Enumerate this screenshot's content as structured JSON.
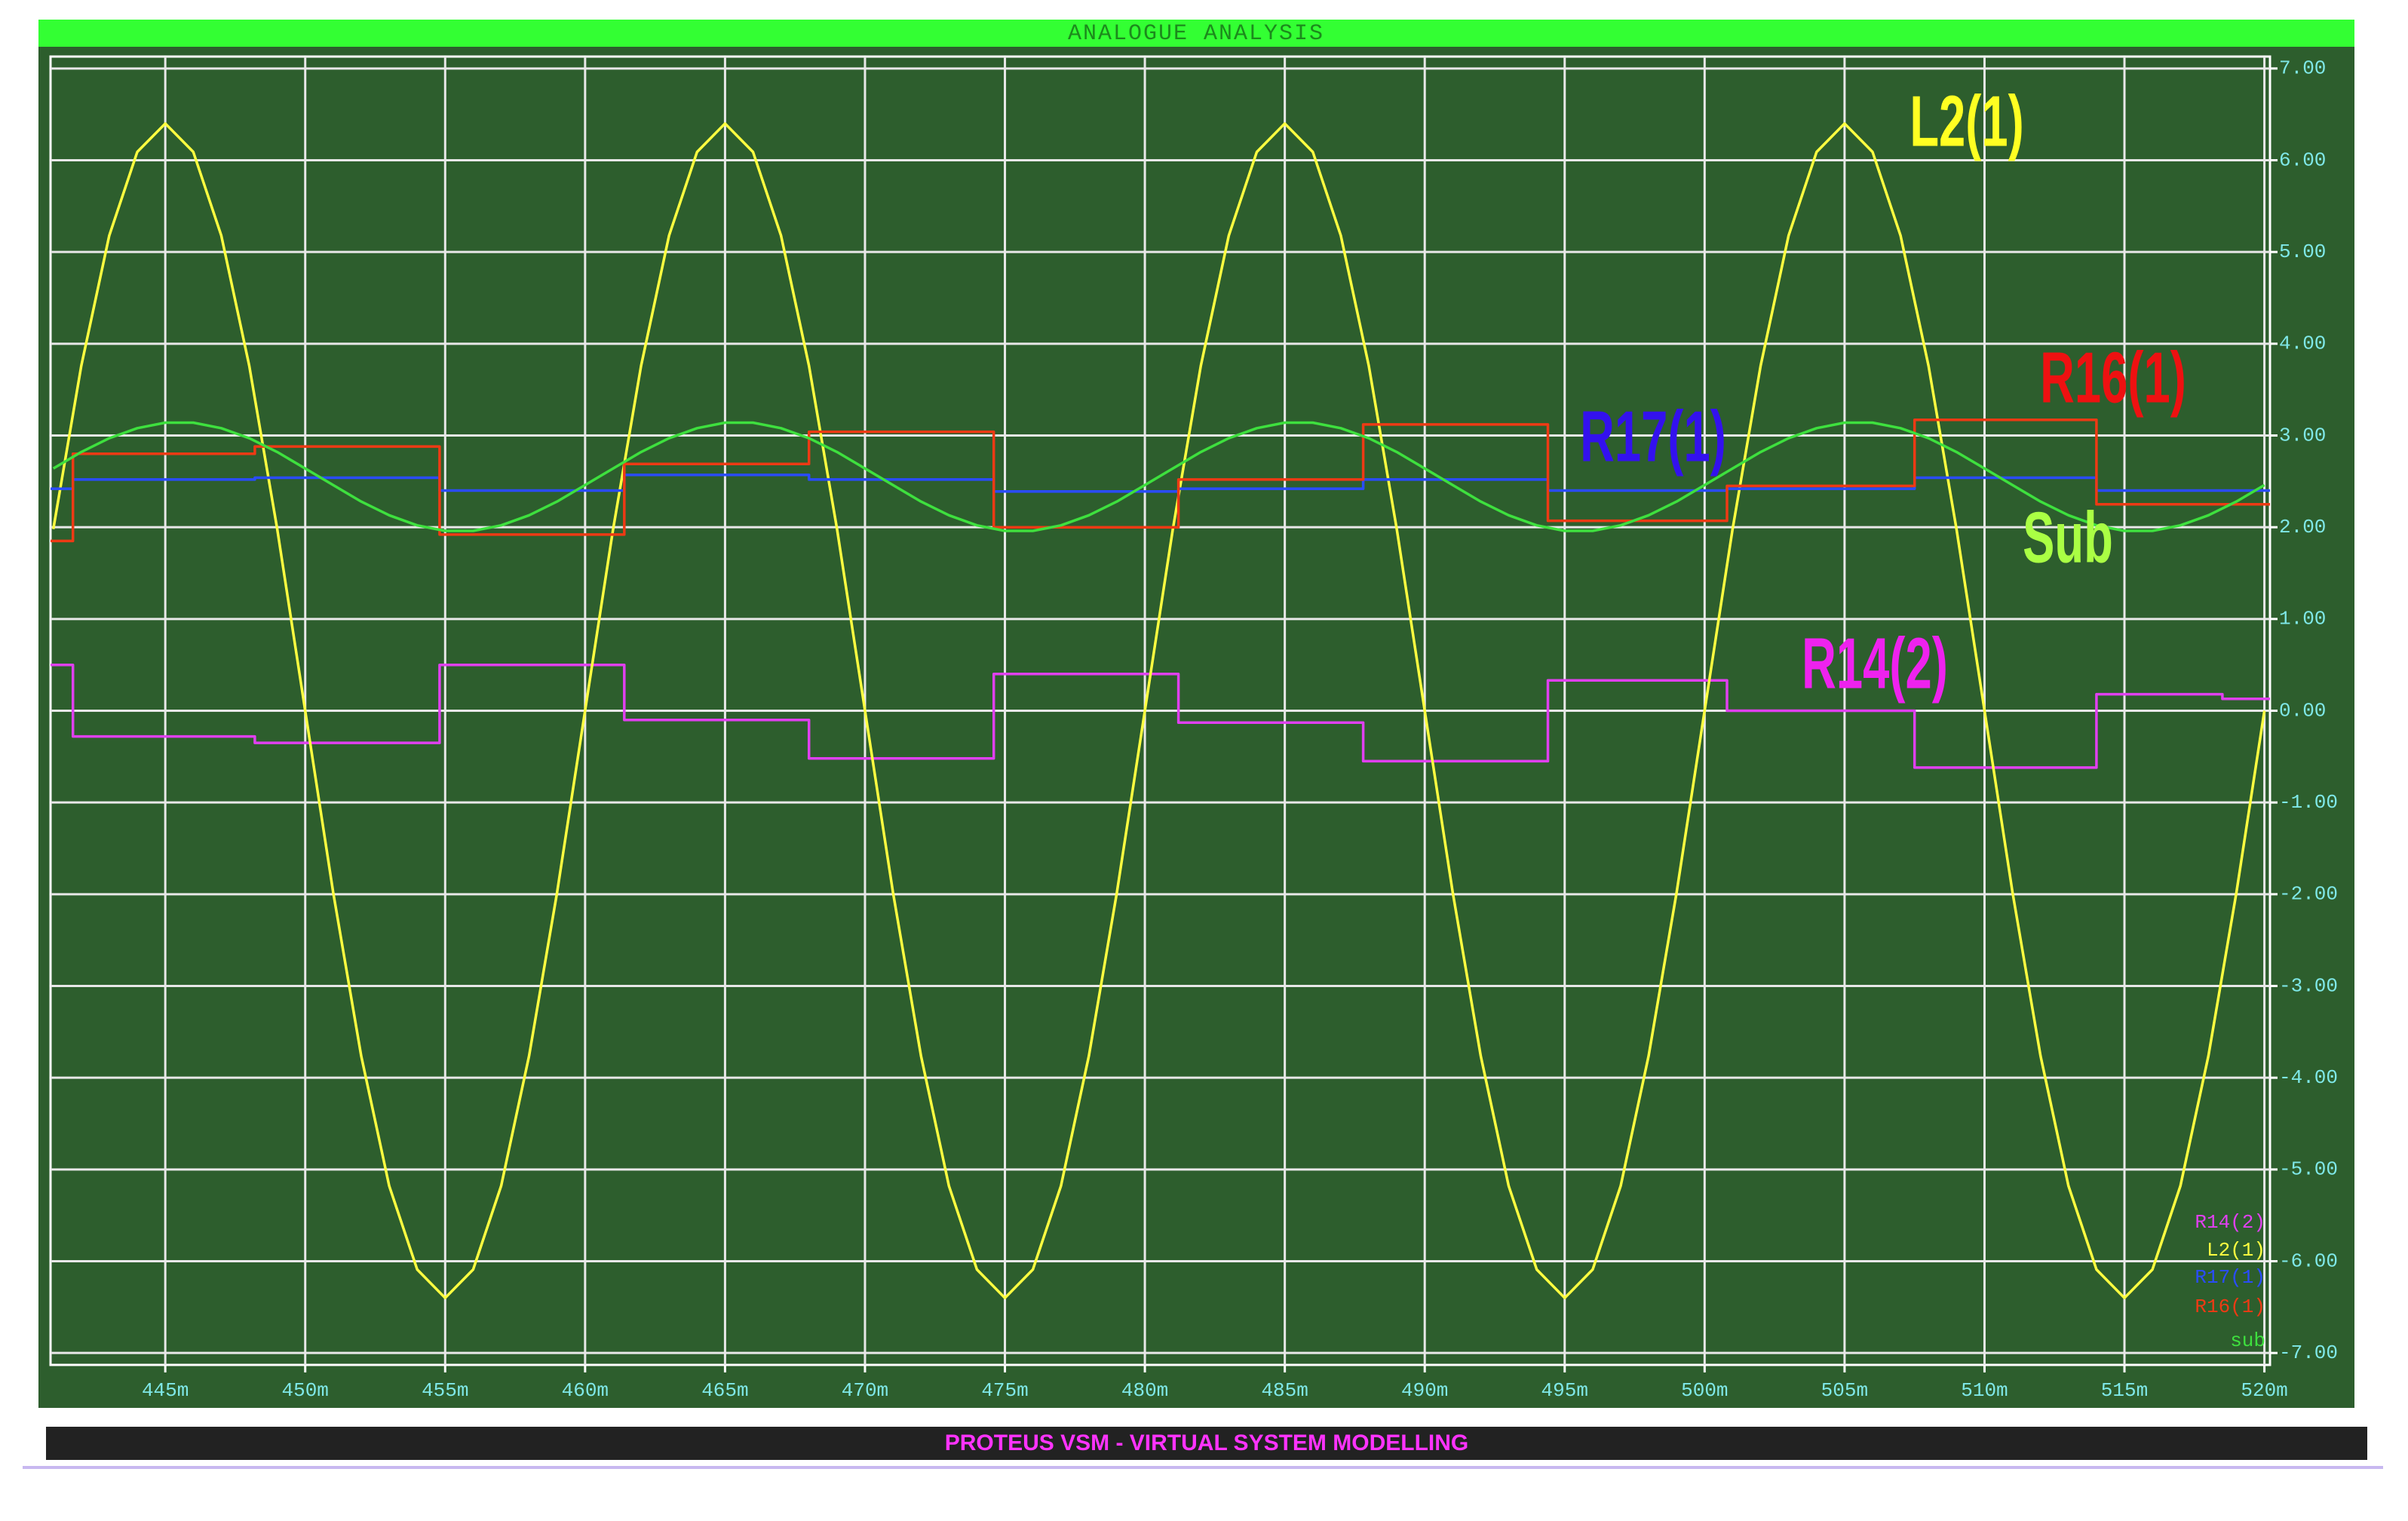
{
  "chart_data": {
    "type": "line",
    "title": "ANALOGUE ANALYSIS",
    "footer": "PROTEUS VSM - VIRTUAL SYSTEM MODELLING",
    "xlim": [
      440.9,
      520.2
    ],
    "ylim": [
      -7.13,
      7.13
    ],
    "grid": true,
    "xticks": [
      {
        "value": 445,
        "label": "445m"
      },
      {
        "value": 450,
        "label": "450m"
      },
      {
        "value": 455,
        "label": "455m"
      },
      {
        "value": 460,
        "label": "460m"
      },
      {
        "value": 465,
        "label": "465m"
      },
      {
        "value": 470,
        "label": "470m"
      },
      {
        "value": 475,
        "label": "475m"
      },
      {
        "value": 480,
        "label": "480m"
      },
      {
        "value": 485,
        "label": "485m"
      },
      {
        "value": 490,
        "label": "490m"
      },
      {
        "value": 495,
        "label": "495m"
      },
      {
        "value": 500,
        "label": "500m"
      },
      {
        "value": 505,
        "label": "505m"
      },
      {
        "value": 510,
        "label": "510m"
      },
      {
        "value": 515,
        "label": "515m"
      },
      {
        "value": 520,
        "label": "520m"
      }
    ],
    "yticks": [
      {
        "value": 7,
        "label": "7.00"
      },
      {
        "value": 6,
        "label": "6.00"
      },
      {
        "value": 5,
        "label": "5.00"
      },
      {
        "value": 4,
        "label": "4.00"
      },
      {
        "value": 3,
        "label": "3.00"
      },
      {
        "value": 2,
        "label": "2.00"
      },
      {
        "value": 1,
        "label": "1.00"
      },
      {
        "value": 0,
        "label": "0.00"
      },
      {
        "value": -1,
        "label": "-1.00"
      },
      {
        "value": -2,
        "label": "-2.00"
      },
      {
        "value": -3,
        "label": "-3.00"
      },
      {
        "value": -4,
        "label": "-4.00"
      },
      {
        "value": -5,
        "label": "-5.00"
      },
      {
        "value": -6,
        "label": "-6.00"
      },
      {
        "value": -7,
        "label": "-7.00"
      }
    ],
    "x": [
      441,
      442,
      443,
      444,
      445,
      446,
      447,
      448,
      449,
      450,
      451,
      452,
      453,
      454,
      455,
      456,
      457,
      458,
      459,
      460,
      461,
      462,
      463,
      464,
      465,
      466,
      467,
      468,
      469,
      470,
      471,
      472,
      473,
      474,
      475,
      476,
      477,
      478,
      479,
      480,
      481,
      482,
      483,
      484,
      485,
      486,
      487,
      488,
      489,
      490,
      491,
      492,
      493,
      494,
      495,
      496,
      497,
      498,
      499,
      500,
      501,
      502,
      503,
      504,
      505,
      506,
      507,
      508,
      509,
      510,
      511,
      512,
      513,
      514,
      515,
      516,
      517,
      518,
      519,
      520
    ],
    "series": [
      {
        "name": "R14(2)",
        "color": "#e040f0",
        "x": [
          440.9,
          441.7,
          441.7,
          448.2,
          448.2,
          454.8,
          454.8,
          461.4,
          461.4,
          468.0,
          468.0,
          474.6,
          474.6,
          481.2,
          481.2,
          487.8,
          487.8,
          494.4,
          494.4,
          500.8,
          500.8,
          507.5,
          507.5,
          514.0,
          514.0,
          518.5,
          518.5,
          520.2
        ],
        "values": [
          0.5,
          0.5,
          -0.28,
          -0.28,
          -0.35,
          -0.35,
          0.5,
          0.5,
          -0.1,
          -0.1,
          -0.52,
          -0.52,
          0.4,
          0.4,
          -0.13,
          -0.13,
          -0.55,
          -0.55,
          0.33,
          0.33,
          0.0,
          0.0,
          -0.62,
          -0.62,
          0.18,
          0.18,
          0.13,
          0.13
        ]
      },
      {
        "name": "L2(1)",
        "color": "#ffff40",
        "values": [
          1.98,
          3.76,
          5.18,
          6.09,
          6.4,
          6.09,
          5.18,
          3.76,
          1.98,
          0,
          -1.98,
          -3.76,
          -5.18,
          -6.09,
          -6.4,
          -6.09,
          -5.18,
          -3.76,
          -1.98,
          0,
          1.98,
          3.76,
          5.18,
          6.09,
          6.4,
          6.09,
          5.18,
          3.76,
          1.98,
          0,
          -1.98,
          -3.76,
          -5.18,
          -6.09,
          -6.4,
          -6.09,
          -5.18,
          -3.76,
          -1.98,
          0,
          1.98,
          3.76,
          5.18,
          6.09,
          6.4,
          6.09,
          5.18,
          3.76,
          1.98,
          0,
          -1.98,
          -3.76,
          -5.18,
          -6.09,
          -6.4,
          -6.09,
          -5.18,
          -3.76,
          -1.98,
          0,
          1.98,
          3.76,
          5.18,
          6.09,
          6.4,
          6.09,
          5.18,
          3.76,
          1.98,
          0,
          -1.98,
          -3.76,
          -5.18,
          -6.09,
          -6.4,
          -6.09,
          -5.18,
          -3.76,
          -1.98,
          0
        ]
      },
      {
        "name": "R17(1)",
        "color": "#2a4cff",
        "x": [
          440.9,
          441.7,
          441.7,
          448.2,
          448.2,
          454.8,
          454.8,
          461.4,
          461.4,
          468.0,
          468.0,
          474.6,
          474.6,
          481.2,
          481.2,
          487.8,
          487.8,
          494.4,
          494.4,
          500.8,
          500.8,
          507.5,
          507.5,
          514.0,
          514.0,
          520.2
        ],
        "values": [
          2.42,
          2.42,
          2.52,
          2.52,
          2.54,
          2.54,
          2.4,
          2.4,
          2.57,
          2.57,
          2.52,
          2.52,
          2.39,
          2.39,
          2.42,
          2.42,
          2.52,
          2.52,
          2.4,
          2.4,
          2.42,
          2.42,
          2.54,
          2.54,
          2.4,
          2.4
        ]
      },
      {
        "name": "R16(1)",
        "color": "#ee3a14",
        "x": [
          440.9,
          441.7,
          441.7,
          448.2,
          448.2,
          454.8,
          454.8,
          461.4,
          461.4,
          468.0,
          468.0,
          474.6,
          474.6,
          481.2,
          481.2,
          487.8,
          487.8,
          494.4,
          494.4,
          500.8,
          500.8,
          507.5,
          507.5,
          514.0,
          514.0,
          520.2
        ],
        "values": [
          1.85,
          1.85,
          2.8,
          2.8,
          2.88,
          2.88,
          1.92,
          1.92,
          2.69,
          2.69,
          3.04,
          3.04,
          2.0,
          2.0,
          2.52,
          2.52,
          3.12,
          3.12,
          2.07,
          2.07,
          2.45,
          2.45,
          3.17,
          3.17,
          2.25,
          2.25
        ]
      },
      {
        "name": "sub",
        "color": "#3ee03e",
        "values": [
          2.64,
          2.82,
          2.97,
          3.08,
          3.14,
          3.14,
          3.08,
          2.97,
          2.82,
          2.64,
          2.46,
          2.28,
          2.13,
          2.02,
          1.96,
          1.96,
          2.02,
          2.13,
          2.28,
          2.46,
          2.64,
          2.82,
          2.97,
          3.08,
          3.14,
          3.14,
          3.08,
          2.97,
          2.82,
          2.64,
          2.46,
          2.28,
          2.13,
          2.02,
          1.96,
          1.96,
          2.02,
          2.13,
          2.28,
          2.46,
          2.64,
          2.82,
          2.97,
          3.08,
          3.14,
          3.14,
          3.08,
          2.97,
          2.82,
          2.64,
          2.46,
          2.28,
          2.13,
          2.02,
          1.96,
          1.96,
          2.02,
          2.13,
          2.28,
          2.46,
          2.64,
          2.82,
          2.97,
          3.08,
          3.14,
          3.14,
          3.08,
          2.97,
          2.82,
          2.64,
          2.46,
          2.28,
          2.13,
          2.02,
          1.96,
          1.96,
          2.02,
          2.13,
          2.28,
          2.46
        ]
      }
    ],
    "annotations": [
      {
        "text": "L2(1)",
        "color": "#ffff22"
      },
      {
        "text": "R16(1)",
        "color": "#ee1111"
      },
      {
        "text": "R17(1)",
        "color": "#3311ee"
      },
      {
        "text": "Sub",
        "color": "#aaff44"
      },
      {
        "text": "R14(2)",
        "color": "#ee22ee"
      }
    ]
  }
}
